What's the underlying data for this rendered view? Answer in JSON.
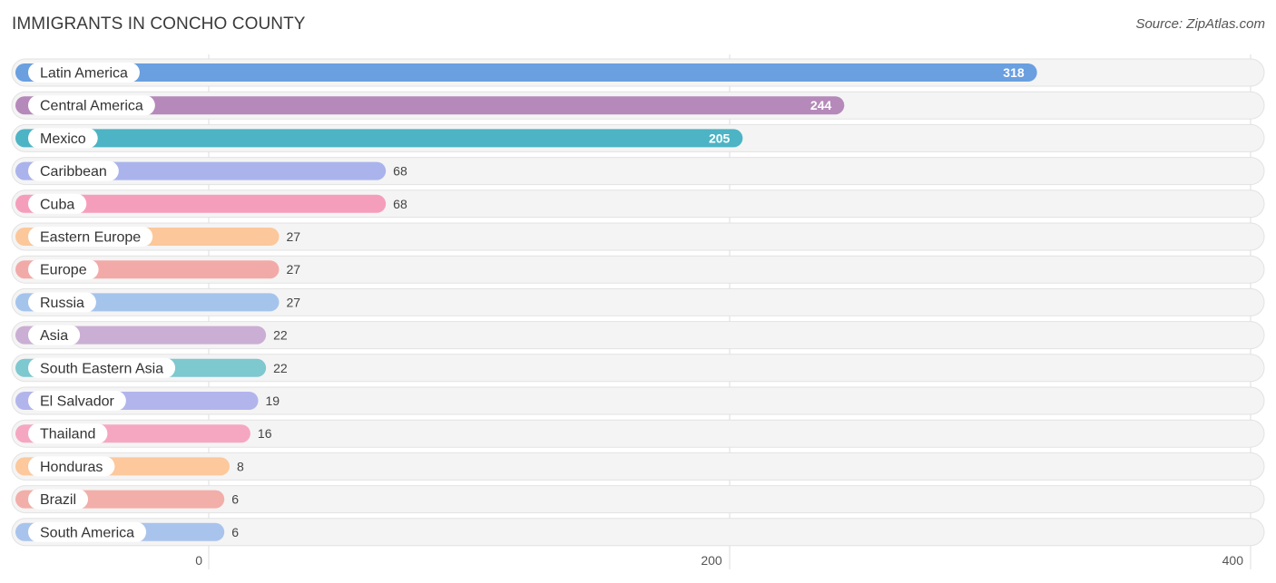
{
  "chart_data": {
    "type": "bar",
    "orientation": "horizontal",
    "title": "IMMIGRANTS IN CONCHO COUNTY",
    "source": "Source: ZipAtlas.com",
    "xlim": [
      0,
      400
    ],
    "xticks": [
      0,
      200,
      400
    ],
    "grid": true,
    "categories": [
      "Latin America",
      "Central America",
      "Mexico",
      "Caribbean",
      "Cuba",
      "Eastern Europe",
      "Europe",
      "Russia",
      "Asia",
      "South Eastern Asia",
      "El Salvador",
      "Thailand",
      "Honduras",
      "Brazil",
      "South America"
    ],
    "values": [
      318,
      244,
      205,
      68,
      68,
      27,
      27,
      27,
      22,
      22,
      19,
      16,
      8,
      6,
      6
    ],
    "colors": [
      "#6a9fe0",
      "#b589ba",
      "#4cb4c4",
      "#aab3ec",
      "#f59ebb",
      "#fcc79a",
      "#f2aaa8",
      "#a5c4ec",
      "#cbaed3",
      "#7ec8cf",
      "#b2b5ec",
      "#f5a7c2",
      "#fcc89c",
      "#f2aea9",
      "#a9c4ec"
    ]
  }
}
